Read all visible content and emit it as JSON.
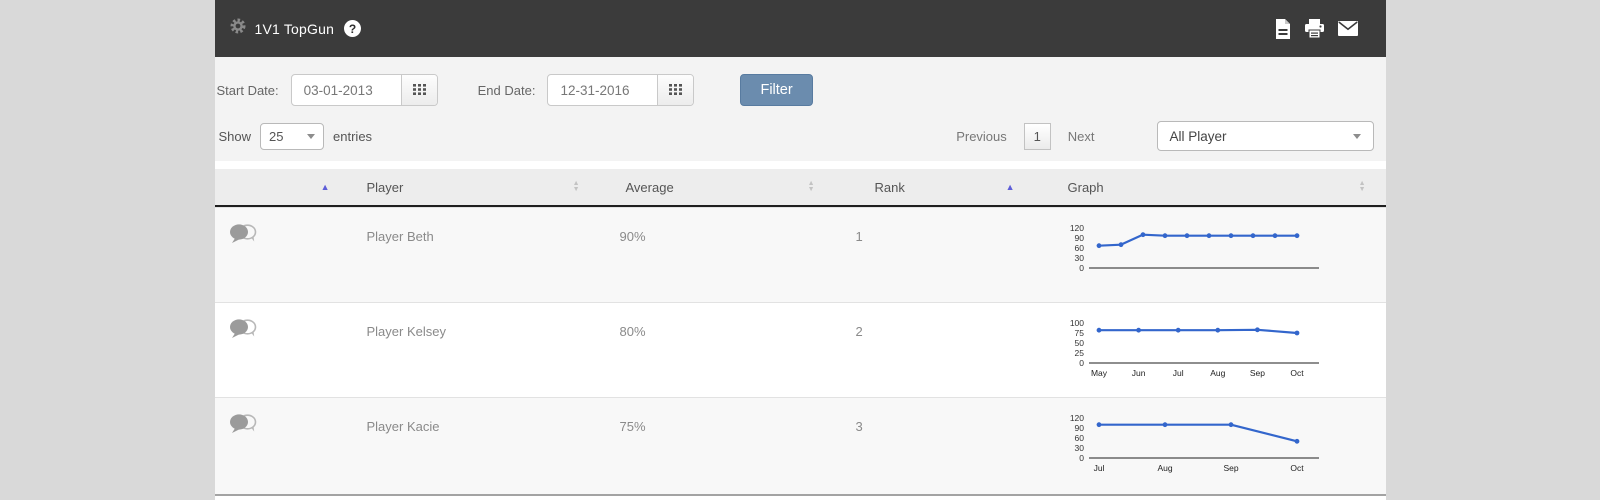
{
  "title_bar": {
    "title": "1V1 TopGun",
    "help": "?"
  },
  "filters": {
    "start_label": "Start Date:",
    "start_value": "03-01-2013",
    "end_label": "End Date:",
    "end_value": "12-31-2016",
    "button": "Filter"
  },
  "controls": {
    "show": "Show",
    "entries_count": "25",
    "entries": "entries",
    "previous": "Previous",
    "page": "1",
    "next": "Next",
    "player_filter": "All Player"
  },
  "table": {
    "columns": [
      {
        "label": "",
        "sort": "asc"
      },
      {
        "label": "Player",
        "sort": "both"
      },
      {
        "label": "Average",
        "sort": "both"
      },
      {
        "label": "Rank",
        "sort": "asc"
      },
      {
        "label": "Graph",
        "sort": "both"
      }
    ],
    "rows": [
      {
        "player": "Player Beth",
        "average": "90%",
        "rank": "1"
      },
      {
        "player": "Player Kelsey",
        "average": "80%",
        "rank": "2"
      },
      {
        "player": "Player Kacie",
        "average": "75%",
        "rank": "3"
      }
    ]
  },
  "chart_data": [
    {
      "type": "line",
      "categories": [],
      "values": [
        67,
        70,
        100,
        97,
        97,
        97,
        97,
        97,
        97,
        97
      ],
      "ylim": [
        0,
        120
      ],
      "yticks": [
        120,
        90,
        60,
        30,
        0
      ],
      "line_color": "#3366cc",
      "grid": false,
      "legend": "none"
    },
    {
      "type": "line",
      "categories": [
        "May",
        "Jun",
        "Jul",
        "Aug",
        "Sep",
        "Oct"
      ],
      "values": [
        82,
        82,
        82,
        82,
        83,
        75
      ],
      "ylim": [
        0,
        100
      ],
      "yticks": [
        100,
        75,
        50,
        25,
        0
      ],
      "line_color": "#3366cc",
      "grid": false,
      "legend": "none"
    },
    {
      "type": "line",
      "categories": [
        "Jul",
        "Aug",
        "Sep",
        "Oct"
      ],
      "values": [
        100,
        100,
        100,
        50
      ],
      "ylim": [
        0,
        120
      ],
      "yticks": [
        120,
        90,
        60,
        30,
        0
      ],
      "line_color": "#3366cc",
      "grid": false,
      "legend": "none"
    }
  ],
  "icons": {
    "sort_asc": "▲",
    "sort_desc": "▼"
  },
  "colors": {
    "topbar_bg": "#3b3b3b",
    "filter_button": "#6b8cae",
    "chart_line": "#3366cc",
    "sort_active": "#5e5ed8",
    "page_bg": "#d9d9d9"
  }
}
